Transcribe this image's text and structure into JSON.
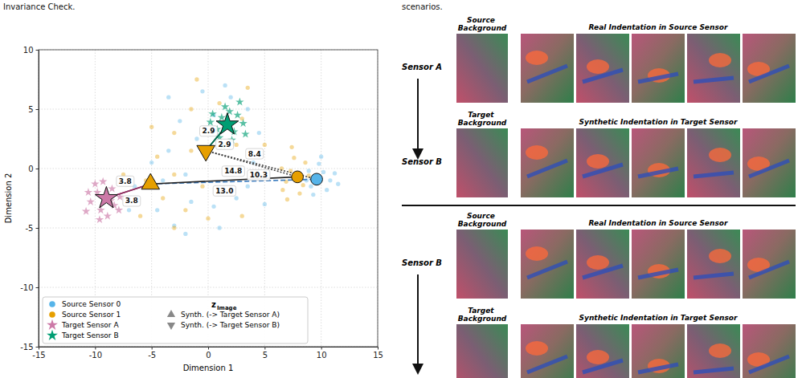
{
  "captions": {
    "left": "Invariance Check.",
    "right": "scenarios."
  },
  "chart_data": {
    "type": "scatter",
    "xlabel": "Dimension 1",
    "ylabel": "Dimension 2",
    "xlim": [
      -15,
      15
    ],
    "ylim": [
      -15,
      10
    ],
    "xticks": [
      -15,
      -10,
      -5,
      0,
      5,
      10,
      15
    ],
    "yticks": [
      -15,
      -10,
      -5,
      0,
      5,
      10
    ],
    "grid": true,
    "legend": "lower left",
    "legend_title": "z",
    "legend_title_subscript": "Image",
    "series": [
      {
        "name": "Source Sensor 0",
        "color": "#56b4e9",
        "marker": "circle",
        "x": [
          9.6,
          10.2,
          9.1,
          10.8,
          9.8,
          8.9,
          10.5,
          11.2,
          9.3,
          10.0,
          11.5,
          8.7,
          -6.5,
          -4.5,
          -3,
          -1.5,
          0.5,
          2.5,
          3.5,
          -5,
          -3.5,
          -2,
          -1,
          0.5,
          2,
          3.5,
          4.5,
          -2.5,
          -0.5,
          1.5,
          -4,
          -7,
          -2,
          1,
          4,
          5,
          -3.5
        ],
        "values": [
          -0.9,
          -0.3,
          -1.5,
          -1.0,
          0.4,
          -0.2,
          -1.8,
          -0.4,
          -2.2,
          1.0,
          -1.3,
          -1.0,
          -1.5,
          -3.5,
          -4.8,
          -2.8,
          -3.2,
          -2.5,
          -1.5,
          0.5,
          1.5,
          -0.5,
          2.5,
          4.5,
          6,
          5,
          3,
          4,
          6.5,
          7,
          -1,
          -3.5,
          -5.5,
          -5,
          0.5,
          -3,
          6
        ],
        "centroid_x": 9.6,
        "centroid_y": -0.9
      },
      {
        "name": "Source Sensor 1",
        "color": "#e69f00",
        "marker": "circle",
        "x": [
          7.9,
          7.3,
          8.4,
          6.9,
          8.6,
          7.6,
          8.1,
          7.0,
          6.5,
          8.9,
          6.6,
          7.4,
          -5.5,
          -4,
          -3,
          -2,
          -0.5,
          1,
          2,
          -6,
          -4.5,
          -1.5,
          0,
          1,
          3,
          -3,
          -1.5,
          2.5,
          -7.5,
          -3,
          0,
          3,
          4.5,
          -1,
          3.5,
          -5,
          5
        ],
        "values": [
          -0.7,
          -0.2,
          -1.4,
          -1.1,
          0.5,
          0.9,
          -2.1,
          -2.6,
          0.0,
          -0.6,
          -1.8,
          1.8,
          -1,
          -2.5,
          -0.5,
          -3.5,
          -1.5,
          -2,
          0,
          -4,
          1,
          1.5,
          3,
          5.5,
          4.2,
          3,
          5,
          2,
          -0.5,
          -5,
          -4.2,
          -4,
          -0.8,
          7.5,
          6.8,
          3.5,
          2
        ],
        "centroid_x": 7.9,
        "centroid_y": -0.7
      },
      {
        "name": "Target Sensor A",
        "color": "#cc79a7",
        "marker": "star",
        "x": [
          -9,
          -9.8,
          -8.3,
          -9.5,
          -10.4,
          -8.5,
          -10,
          -8.9,
          -7.8,
          -10.8,
          -9.3,
          -7.9,
          -10.6,
          -9.6,
          -8.6
        ],
        "values": [
          -2.5,
          -2,
          -3.1,
          -3.5,
          -2.8,
          -1.7,
          -1.3,
          -4,
          -2.4,
          -3.6,
          -1.1,
          -3.5,
          -2,
          -4.3,
          -2.7
        ],
        "centroid_x": -9,
        "centroid_y": -2.5
      },
      {
        "name": "Target Sensor B",
        "color": "#009e73",
        "marker": "star",
        "x": [
          1.7,
          1.2,
          2.3,
          0.8,
          2.6,
          1.5,
          0.4,
          2.1,
          3.1,
          1.0,
          2.8,
          0.2,
          1.9,
          3.3,
          1.3
        ],
        "values": [
          3.7,
          4.3,
          3.1,
          3.3,
          4.5,
          5.2,
          4.6,
          2.4,
          3.8,
          2.6,
          5.6,
          3.9,
          4.8,
          2.9,
          1.9
        ],
        "centroid_x": 1.7,
        "centroid_y": 3.7
      },
      {
        "name": "Synth. (-> Target Sensor A)",
        "color": "#e69f00",
        "marker": "triangle-up",
        "centroid_x": -5.1,
        "centroid_y": -1.3
      },
      {
        "name": "Synth. (-> Target Sensor B)",
        "color": "#e69f00",
        "marker": "triangle-down",
        "centroid_x": -0.2,
        "centroid_y": 1.5
      }
    ],
    "links": [
      {
        "from": 4,
        "to": 2,
        "value": 3.8,
        "label": "3.8",
        "color": "#8e2c5e",
        "line_style": "solid"
      },
      {
        "from": 4,
        "to": 2,
        "value": 3.8,
        "label": "3.8",
        "color": "#8e2c5e",
        "line_style": "solid"
      },
      {
        "from": 5,
        "to": 3,
        "value": 2.9,
        "label": "2.9",
        "color": "#00664a",
        "line_style": "solid"
      },
      {
        "from": 5,
        "to": 3,
        "value": 2.9,
        "label": "2.9",
        "color": "#00664a",
        "line_style": "solid"
      },
      {
        "from": 4,
        "to": 0,
        "value": 14.8,
        "label": "14.8",
        "color": "#3a7bbf",
        "line_style": "dashed"
      },
      {
        "from": 4,
        "to": 1,
        "value": 13.0,
        "label": "13.0",
        "color": "#222222",
        "line_style": "solid"
      },
      {
        "from": 5,
        "to": 1,
        "value": 8.4,
        "label": "8.4",
        "color": "#444444",
        "line_style": "dotted"
      },
      {
        "from": 5,
        "to": 0,
        "value": 10.3,
        "label": "10.3",
        "color": "#444444",
        "line_style": "dotted"
      }
    ]
  },
  "panel": {
    "blocks": [
      {
        "source_sensor": "Sensor A",
        "target_sensor": "Sensor B",
        "source_background": "Source Background",
        "real_header": "Real Indentation in Source Sensor",
        "target_background": "Target Background",
        "synthetic_header": "Synthetic Indentation in Target Sensor"
      },
      {
        "source_sensor": "Sensor B",
        "source_background": "Source Background",
        "real_header": "Real Indentation in Source Sensor",
        "target_background": "Target Background",
        "synthetic_header": "Synthetic Indentation in Target Sensor"
      }
    ]
  }
}
